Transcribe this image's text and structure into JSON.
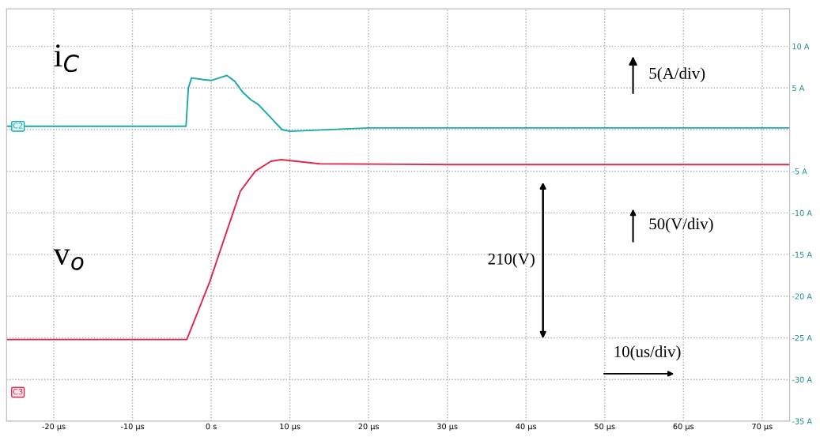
{
  "chart_data": {
    "type": "line",
    "xlim": [
      -26,
      73.5
    ],
    "ylim": [
      -35,
      14.5
    ],
    "xticks": [
      {
        "value": -20,
        "label": "-20 µs"
      },
      {
        "value": -10,
        "label": "-10 µs"
      },
      {
        "value": 0,
        "label": "0 s"
      },
      {
        "value": 10,
        "label": "10 µs"
      },
      {
        "value": 20,
        "label": "20 µs"
      },
      {
        "value": 30,
        "label": "30 µs"
      },
      {
        "value": 40,
        "label": "40 µs"
      },
      {
        "value": 50,
        "label": "50 µs"
      },
      {
        "value": 60,
        "label": "60 µs"
      },
      {
        "value": 70,
        "label": "70 µs"
      }
    ],
    "yticks": [
      {
        "value": 10,
        "label": "10 A"
      },
      {
        "value": 5,
        "label": "5 A"
      },
      {
        "value": 0,
        "label": null
      },
      {
        "value": -5,
        "label": "-5 A"
      },
      {
        "value": -10,
        "label": "-10 A"
      },
      {
        "value": -15,
        "label": "-15 A"
      },
      {
        "value": -20,
        "label": "-20 A"
      },
      {
        "value": -25,
        "label": "-25 A"
      },
      {
        "value": -30,
        "label": "-30 A"
      },
      {
        "value": -35,
        "label": "-35 A"
      }
    ],
    "grid": true,
    "line_style": "solid",
    "marker": "none",
    "series": [
      {
        "name": "i$_{C}$",
        "color": "#1aaaae",
        "x": [
          -26,
          -3.2,
          -2.9,
          -2.5,
          -1,
          0,
          1,
          2,
          3,
          4,
          5,
          6,
          7,
          8,
          9,
          10,
          20,
          30,
          40,
          50,
          60,
          73.5
        ],
        "values": [
          0.4,
          0.4,
          5.0,
          6.2,
          6.0,
          5.9,
          6.2,
          6.5,
          5.8,
          4.5,
          3.6,
          3.0,
          2.0,
          1.0,
          0.0,
          -0.2,
          0.2,
          0.2,
          0.2,
          0.2,
          0.2,
          0.2
        ]
      },
      {
        "name": "v$_{o}$",
        "color": "#e0284e",
        "x": [
          -26,
          -3.1,
          -0.2,
          3.7,
          5.6,
          7.6,
          8.9,
          13.8,
          30,
          50,
          73.5
        ],
        "values": [
          -25.2,
          -25.2,
          -18.3,
          -7.4,
          -5.0,
          -3.8,
          -3.6,
          -4.1,
          -4.2,
          -4.2,
          -4.2
        ]
      }
    ],
    "annotations": [
      "5(A/div)",
      "50(V/div)",
      "210(V)",
      "10(us/div)",
      "C2",
      "C3"
    ]
  }
}
